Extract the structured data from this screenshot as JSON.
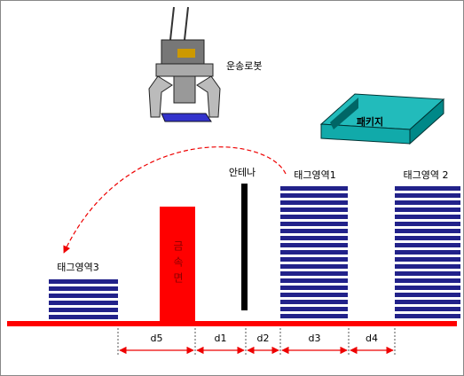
{
  "robot": {
    "label": "운송로봇"
  },
  "package": {
    "label": "패키지"
  },
  "antenna": {
    "label": "안테나"
  },
  "metal": {
    "label": "금속면"
  },
  "tag_areas": [
    {
      "label": "태그영역1"
    },
    {
      "label": "태그영역 2"
    },
    {
      "label": "태그영역3"
    }
  ],
  "dimensions": [
    "d5",
    "d1",
    "d2",
    "d3",
    "d4"
  ]
}
